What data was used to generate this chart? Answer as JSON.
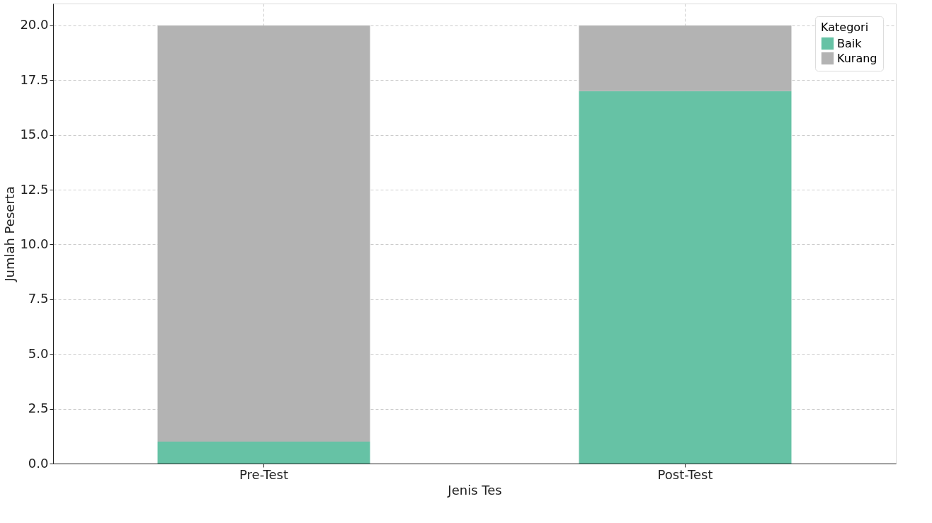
{
  "chart_data": {
    "type": "bar",
    "stacked": true,
    "xlabel": "Jenis Tes",
    "ylabel": "Jumlah Peserta",
    "legend_title": "Kategori",
    "categories": [
      "Pre-Test",
      "Post-Test"
    ],
    "series": [
      {
        "name": "Baik",
        "color": "#66c2a5",
        "values": [
          1,
          17
        ]
      },
      {
        "name": "Kurang",
        "color": "#b3b3b3",
        "values": [
          19,
          3
        ]
      }
    ],
    "ylim": [
      0,
      21
    ],
    "yticks": [
      {
        "value": 0,
        "label": "0.0"
      },
      2.5,
      {
        "value": 5,
        "label": "5.0"
      },
      7.5,
      {
        "value": 10,
        "label": "10.0"
      },
      12.5,
      {
        "value": 15,
        "label": "15.0"
      },
      17.5,
      {
        "value": 20,
        "label": "20.0"
      }
    ],
    "grid": true,
    "legend": "top right"
  }
}
